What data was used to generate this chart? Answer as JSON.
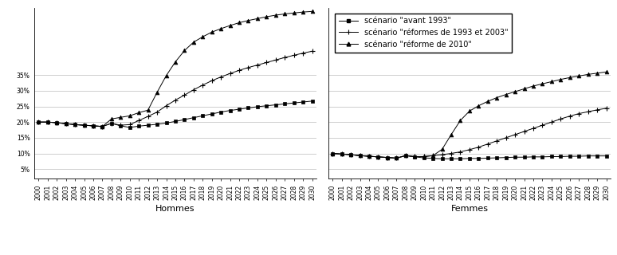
{
  "years": [
    2000,
    2001,
    2002,
    2003,
    2004,
    2005,
    2006,
    2007,
    2008,
    2009,
    2010,
    2011,
    2012,
    2013,
    2014,
    2015,
    2016,
    2017,
    2018,
    2019,
    2020,
    2021,
    2022,
    2023,
    2024,
    2025,
    2026,
    2027,
    2028,
    2029,
    2030
  ],
  "hommes": {
    "avant1993": [
      0.2,
      0.2,
      0.198,
      0.195,
      0.192,
      0.19,
      0.188,
      0.186,
      0.196,
      0.188,
      0.183,
      0.187,
      0.19,
      0.193,
      0.197,
      0.202,
      0.208,
      0.214,
      0.22,
      0.226,
      0.232,
      0.237,
      0.241,
      0.245,
      0.249,
      0.252,
      0.255,
      0.258,
      0.261,
      0.264,
      0.267
    ],
    "ref1993_2003": [
      0.2,
      0.2,
      0.198,
      0.195,
      0.192,
      0.19,
      0.188,
      0.186,
      0.196,
      0.19,
      0.192,
      0.205,
      0.218,
      0.232,
      0.252,
      0.27,
      0.286,
      0.303,
      0.318,
      0.332,
      0.344,
      0.355,
      0.365,
      0.374,
      0.382,
      0.39,
      0.398,
      0.406,
      0.413,
      0.42,
      0.426
    ],
    "ref2010": [
      0.2,
      0.2,
      0.198,
      0.195,
      0.192,
      0.19,
      0.188,
      0.186,
      0.21,
      0.215,
      0.22,
      0.23,
      0.238,
      0.295,
      0.348,
      0.392,
      0.428,
      0.455,
      0.472,
      0.487,
      0.498,
      0.508,
      0.517,
      0.524,
      0.53,
      0.536,
      0.541,
      0.545,
      0.548,
      0.551,
      0.553
    ]
  },
  "femmes": {
    "avant1993": [
      0.1,
      0.098,
      0.096,
      0.093,
      0.091,
      0.089,
      0.087,
      0.085,
      0.093,
      0.089,
      0.086,
      0.084,
      0.083,
      0.083,
      0.083,
      0.084,
      0.084,
      0.085,
      0.086,
      0.087,
      0.088,
      0.088,
      0.089,
      0.089,
      0.09,
      0.09,
      0.091,
      0.091,
      0.092,
      0.092,
      0.092
    ],
    "ref1993_2003": [
      0.1,
      0.098,
      0.096,
      0.093,
      0.091,
      0.089,
      0.087,
      0.085,
      0.093,
      0.09,
      0.09,
      0.093,
      0.096,
      0.1,
      0.105,
      0.112,
      0.12,
      0.13,
      0.14,
      0.15,
      0.16,
      0.17,
      0.18,
      0.19,
      0.2,
      0.21,
      0.219,
      0.227,
      0.233,
      0.239,
      0.244
    ],
    "ref2010": [
      0.1,
      0.098,
      0.096,
      0.093,
      0.091,
      0.089,
      0.087,
      0.085,
      0.093,
      0.09,
      0.09,
      0.093,
      0.113,
      0.16,
      0.205,
      0.235,
      0.252,
      0.266,
      0.278,
      0.288,
      0.297,
      0.306,
      0.315,
      0.322,
      0.329,
      0.336,
      0.342,
      0.347,
      0.352,
      0.356,
      0.36
    ]
  },
  "legend_labels": [
    "scénario \"avant 1993\"",
    "scénario \"réformes de 1993 et 2003\"",
    "scénario \"réforme de 2010\""
  ],
  "yticks": [
    0.05,
    0.1,
    0.15,
    0.2,
    0.25,
    0.3,
    0.35
  ],
  "ytick_labels": [
    "5%",
    "10%",
    "15%",
    "20%",
    "25%",
    "30%",
    "35%"
  ],
  "ymin": 0.02,
  "ymax": 0.565,
  "bg_color": "#ffffff",
  "grid_color": "#bbbbbb",
  "label_hommes": "Hommes",
  "label_femmes": "Femmes",
  "fontsize_ticks": 5.5,
  "fontsize_legend": 7,
  "fontsize_labels": 8
}
